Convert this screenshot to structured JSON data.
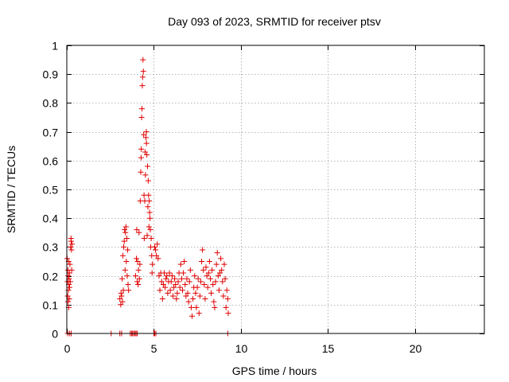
{
  "chart_data": {
    "type": "scatter",
    "title": "Day 093 of 2023, SRMTID for receiver ptsv",
    "xlabel": "GPS time / hours",
    "ylabel": "SRMTID / TECUs",
    "xlim": [
      0,
      24
    ],
    "ylim": [
      0,
      1
    ],
    "xticks": [
      0,
      5,
      10,
      15,
      20
    ],
    "xtick_labels": [
      "0",
      "5",
      "10",
      "15",
      "20"
    ],
    "yticks": [
      0,
      0.1,
      0.2,
      0.3,
      0.4,
      0.5,
      0.6,
      0.7,
      0.8,
      0.9,
      1
    ],
    "ytick_labels": [
      "0",
      "0.1",
      "0.2",
      "0.3",
      "0.4",
      "0.5",
      "0.6",
      "0.7",
      "0.8",
      "0.9",
      "1"
    ],
    "grid": true,
    "marker": "+",
    "series_color": "#e00000",
    "series": [
      {
        "name": "SRMTID",
        "points": [
          [
            0.02,
            0.26
          ],
          [
            0.04,
            0.18
          ],
          [
            0.05,
            0.13
          ],
          [
            0.06,
            0.22
          ],
          [
            0.07,
            0.11
          ],
          [
            0.08,
            0.2
          ],
          [
            0.09,
            0.15
          ],
          [
            0.1,
            0.25
          ],
          [
            0.11,
            0.09
          ],
          [
            0.12,
            0.17
          ],
          [
            0.13,
            0.19
          ],
          [
            0.14,
            0.12
          ],
          [
            0.15,
            0.21
          ],
          [
            0.16,
            0.16
          ],
          [
            0.18,
            0.24
          ],
          [
            0.2,
            0.18
          ],
          [
            0.22,
            0.3
          ],
          [
            0.24,
            0.33
          ],
          [
            0.25,
            0.32
          ],
          [
            0.27,
            0.29
          ],
          [
            0.28,
            0.22
          ],
          [
            0.3,
            0.31
          ],
          [
            3.05,
            0.12
          ],
          [
            3.1,
            0.1
          ],
          [
            3.12,
            0.14
          ],
          [
            3.15,
            0.13
          ],
          [
            3.18,
            0.19
          ],
          [
            3.2,
            0.11
          ],
          [
            3.22,
            0.27
          ],
          [
            3.25,
            0.15
          ],
          [
            3.27,
            0.3
          ],
          [
            3.3,
            0.32
          ],
          [
            3.32,
            0.36
          ],
          [
            3.35,
            0.22
          ],
          [
            3.37,
            0.35
          ],
          [
            3.4,
            0.37
          ],
          [
            3.42,
            0.25
          ],
          [
            3.45,
            0.33
          ],
          [
            3.47,
            0.2
          ],
          [
            3.5,
            0.29
          ],
          [
            3.52,
            0.17
          ],
          [
            3.55,
            0.15
          ],
          [
            3.95,
            0.2
          ],
          [
            4.0,
            0.26
          ],
          [
            4.02,
            0.36
          ],
          [
            4.05,
            0.18
          ],
          [
            4.07,
            0.25
          ],
          [
            4.1,
            0.17
          ],
          [
            4.12,
            0.22
          ],
          [
            4.15,
            0.35
          ],
          [
            4.17,
            0.19
          ],
          [
            4.2,
            0.24
          ],
          [
            4.22,
            0.46
          ],
          [
            4.25,
            0.56
          ],
          [
            4.27,
            0.61
          ],
          [
            4.28,
            0.64
          ],
          [
            4.3,
            0.75
          ],
          [
            4.32,
            0.78
          ],
          [
            4.34,
            0.86
          ],
          [
            4.36,
            0.89
          ],
          [
            4.38,
            0.95
          ],
          [
            4.4,
            0.91
          ],
          [
            4.42,
            0.69
          ],
          [
            4.44,
            0.48
          ],
          [
            4.45,
            0.33
          ],
          [
            4.48,
            0.46
          ],
          [
            4.5,
            0.63
          ],
          [
            4.52,
            0.55
          ],
          [
            4.55,
            0.68
          ],
          [
            4.57,
            0.7
          ],
          [
            4.58,
            0.66
          ],
          [
            4.6,
            0.62
          ],
          [
            4.62,
            0.34
          ],
          [
            4.64,
            0.58
          ],
          [
            4.66,
            0.44
          ],
          [
            4.68,
            0.53
          ],
          [
            4.7,
            0.48
          ],
          [
            4.72,
            0.37
          ],
          [
            4.74,
            0.46
          ],
          [
            4.76,
            0.42
          ],
          [
            4.78,
            0.4
          ],
          [
            4.8,
            0.36
          ],
          [
            4.82,
            0.3
          ],
          [
            4.85,
            0.33
          ],
          [
            4.88,
            0.27
          ],
          [
            4.9,
            0.21
          ],
          [
            4.92,
            0.24
          ],
          [
            5.05,
            0.3
          ],
          [
            5.1,
            0.29
          ],
          [
            5.15,
            0.27
          ],
          [
            5.2,
            0.31
          ],
          [
            5.25,
            0.26
          ],
          [
            5.3,
            0.2
          ],
          [
            5.35,
            0.15
          ],
          [
            5.4,
            0.21
          ],
          [
            5.45,
            0.18
          ],
          [
            5.5,
            0.12
          ],
          [
            5.55,
            0.17
          ],
          [
            5.6,
            0.21
          ],
          [
            5.65,
            0.16
          ],
          [
            5.7,
            0.19
          ],
          [
            5.75,
            0.2
          ],
          [
            5.8,
            0.14
          ],
          [
            5.85,
            0.18
          ],
          [
            5.9,
            0.21
          ],
          [
            5.95,
            0.15
          ],
          [
            6.0,
            0.18
          ],
          [
            6.05,
            0.2
          ],
          [
            6.1,
            0.13
          ],
          [
            6.15,
            0.16
          ],
          [
            6.2,
            0.19
          ],
          [
            6.25,
            0.17
          ],
          [
            6.3,
            0.12
          ],
          [
            6.35,
            0.14
          ],
          [
            6.4,
            0.18
          ],
          [
            6.45,
            0.21
          ],
          [
            6.5,
            0.16
          ],
          [
            6.55,
            0.24
          ],
          [
            6.6,
            0.19
          ],
          [
            6.65,
            0.15
          ],
          [
            6.7,
            0.21
          ],
          [
            6.75,
            0.25
          ],
          [
            6.8,
            0.17
          ],
          [
            6.85,
            0.13
          ],
          [
            6.9,
            0.19
          ],
          [
            6.95,
            0.14
          ],
          [
            7.0,
            0.11
          ],
          [
            7.05,
            0.18
          ],
          [
            7.1,
            0.22
          ],
          [
            7.15,
            0.09
          ],
          [
            7.2,
            0.06
          ],
          [
            7.25,
            0.12
          ],
          [
            7.3,
            0.16
          ],
          [
            7.35,
            0.2
          ],
          [
            7.4,
            0.14
          ],
          [
            7.45,
            0.09
          ],
          [
            7.5,
            0.16
          ],
          [
            7.55,
            0.19
          ],
          [
            7.6,
            0.07
          ],
          [
            7.65,
            0.13
          ],
          [
            7.7,
            0.18
          ],
          [
            7.75,
            0.25
          ],
          [
            7.8,
            0.29
          ],
          [
            7.85,
            0.22
          ],
          [
            7.9,
            0.17
          ],
          [
            7.95,
            0.12
          ],
          [
            8.0,
            0.23
          ],
          [
            8.05,
            0.2
          ],
          [
            8.1,
            0.16
          ],
          [
            8.15,
            0.21
          ],
          [
            8.2,
            0.25
          ],
          [
            8.25,
            0.19
          ],
          [
            8.3,
            0.14
          ],
          [
            8.35,
            0.22
          ],
          [
            8.4,
            0.17
          ],
          [
            8.45,
            0.11
          ],
          [
            8.5,
            0.09
          ],
          [
            8.55,
            0.18
          ],
          [
            8.6,
            0.24
          ],
          [
            8.65,
            0.28
          ],
          [
            8.7,
            0.2
          ],
          [
            8.75,
            0.15
          ],
          [
            8.8,
            0.21
          ],
          [
            8.85,
            0.26
          ],
          [
            8.9,
            0.22
          ],
          [
            8.95,
            0.18
          ],
          [
            9.0,
            0.13
          ],
          [
            9.05,
            0.24
          ],
          [
            9.1,
            0.19
          ],
          [
            9.15,
            0.09
          ],
          [
            9.2,
            0.15
          ],
          [
            9.25,
            0.12
          ],
          [
            9.28,
            0.07
          ],
          [
            0.05,
            0.0
          ],
          [
            0.15,
            0.0
          ],
          [
            0.25,
            0.0
          ],
          [
            2.55,
            0.0
          ],
          [
            3.05,
            0.0
          ],
          [
            3.15,
            0.0
          ],
          [
            3.65,
            0.0
          ],
          [
            3.72,
            0.0
          ],
          [
            3.78,
            0.0
          ],
          [
            3.85,
            0.0
          ],
          [
            3.92,
            0.0
          ],
          [
            3.98,
            0.0
          ],
          [
            4.05,
            0.0
          ],
          [
            5.0,
            0.0
          ],
          [
            5.05,
            0.0
          ],
          [
            5.12,
            0.0
          ],
          [
            9.25,
            0.0
          ]
        ]
      }
    ]
  }
}
